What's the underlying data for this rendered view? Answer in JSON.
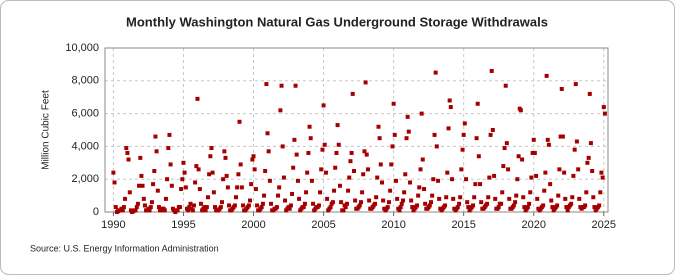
{
  "chart_data": {
    "type": "scatter",
    "title": "Monthly Washington Natural  Gas Underground Storage Withdrawals",
    "y_label": "Million Cubic Feet",
    "source": "Source: U.S. Energy Information Administration",
    "color": "#a50000",
    "grid": true,
    "xlim": [
      1989.4,
      2025.3
    ],
    "ylim": [
      0,
      10000
    ],
    "xticks": [
      1990,
      1995,
      2000,
      2005,
      2010,
      2015,
      2020,
      2025
    ],
    "yticks": [
      0,
      {
        "value": 2000,
        "label": "2,000"
      },
      {
        "value": 4000,
        "label": "4,000"
      },
      {
        "value": 6000,
        "label": "6,000"
      },
      {
        "value": 8000,
        "label": "8,000"
      },
      {
        "value": 10000,
        "label": "10,000"
      }
    ],
    "x": [
      1990.0,
      1990.08,
      1990.17,
      1990.25,
      1990.33,
      1990.42,
      1990.5,
      1990.58,
      1990.67,
      1990.75,
      1990.83,
      1990.92,
      1991.0,
      1991.08,
      1991.17,
      1991.25,
      1991.33,
      1991.42,
      1991.5,
      1991.58,
      1991.67,
      1991.75,
      1991.83,
      1991.92,
      1992.0,
      1992.08,
      1992.17,
      1992.25,
      1992.33,
      1992.42,
      1992.5,
      1992.58,
      1992.67,
      1992.75,
      1992.83,
      1992.92,
      1993.0,
      1993.08,
      1993.17,
      1993.25,
      1993.33,
      1993.42,
      1993.5,
      1993.58,
      1993.67,
      1993.75,
      1993.83,
      1993.92,
      1994.0,
      1994.08,
      1994.17,
      1994.25,
      1994.33,
      1994.42,
      1994.5,
      1994.58,
      1994.67,
      1994.75,
      1994.83,
      1994.92,
      1995.0,
      1995.08,
      1995.17,
      1995.25,
      1995.33,
      1995.42,
      1995.5,
      1995.58,
      1995.67,
      1995.75,
      1995.83,
      1995.92,
      1996.0,
      1996.08,
      1996.17,
      1996.25,
      1996.33,
      1996.42,
      1996.5,
      1996.58,
      1996.67,
      1996.75,
      1996.83,
      1996.92,
      1997.0,
      1997.08,
      1997.17,
      1997.25,
      1997.33,
      1997.42,
      1997.5,
      1997.58,
      1997.67,
      1997.75,
      1997.83,
      1997.92,
      1998.0,
      1998.08,
      1998.17,
      1998.25,
      1998.33,
      1998.42,
      1998.5,
      1998.58,
      1998.67,
      1998.75,
      1998.83,
      1998.92,
      1999.0,
      1999.08,
      1999.17,
      1999.25,
      1999.33,
      1999.42,
      1999.5,
      1999.58,
      1999.67,
      1999.75,
      1999.83,
      1999.92,
      2000.0,
      2000.08,
      2000.17,
      2000.25,
      2000.33,
      2000.42,
      2000.5,
      2000.58,
      2000.67,
      2000.75,
      2000.83,
      2000.92,
      2001.0,
      2001.08,
      2001.17,
      2001.25,
      2001.33,
      2001.42,
      2001.5,
      2001.58,
      2001.67,
      2001.75,
      2001.83,
      2001.92,
      2002.0,
      2002.08,
      2002.17,
      2002.25,
      2002.33,
      2002.42,
      2002.5,
      2002.58,
      2002.67,
      2002.75,
      2002.83,
      2002.92,
      2003.0,
      2003.08,
      2003.17,
      2003.25,
      2003.33,
      2003.42,
      2003.5,
      2003.58,
      2003.67,
      2003.75,
      2003.83,
      2003.92,
      2004.0,
      2004.08,
      2004.17,
      2004.25,
      2004.33,
      2004.42,
      2004.5,
      2004.58,
      2004.67,
      2004.75,
      2004.83,
      2004.92,
      2005.0,
      2005.08,
      2005.17,
      2005.25,
      2005.33,
      2005.42,
      2005.5,
      2005.58,
      2005.67,
      2005.75,
      2005.83,
      2005.92,
      2006.0,
      2006.08,
      2006.17,
      2006.25,
      2006.33,
      2006.42,
      2006.5,
      2006.58,
      2006.67,
      2006.75,
      2006.83,
      2006.92,
      2007.0,
      2007.08,
      2007.17,
      2007.25,
      2007.33,
      2007.42,
      2007.5,
      2007.58,
      2007.67,
      2007.75,
      2007.83,
      2007.92,
      2008.0,
      2008.08,
      2008.17,
      2008.25,
      2008.33,
      2008.42,
      2008.5,
      2008.58,
      2008.67,
      2008.75,
      2008.83,
      2008.92,
      2009.0,
      2009.08,
      2009.17,
      2009.25,
      2009.33,
      2009.42,
      2009.5,
      2009.58,
      2009.67,
      2009.75,
      2009.83,
      2009.92,
      2010.0,
      2010.08,
      2010.17,
      2010.25,
      2010.33,
      2010.42,
      2010.5,
      2010.58,
      2010.67,
      2010.75,
      2010.83,
      2010.92,
      2011.0,
      2011.08,
      2011.17,
      2011.25,
      2011.33,
      2011.42,
      2011.5,
      2011.58,
      2011.67,
      2011.75,
      2011.83,
      2011.92,
      2012.0,
      2012.08,
      2012.17,
      2012.25,
      2012.33,
      2012.42,
      2012.5,
      2012.58,
      2012.67,
      2012.75,
      2012.83,
      2012.92,
      2013.0,
      2013.08,
      2013.17,
      2013.25,
      2013.33,
      2013.42,
      2013.5,
      2013.58,
      2013.67,
      2013.75,
      2013.83,
      2013.92,
      2014.0,
      2014.08,
      2014.17,
      2014.25,
      2014.33,
      2014.42,
      2014.5,
      2014.58,
      2014.67,
      2014.75,
      2014.83,
      2014.92,
      2015.0,
      2015.08,
      2015.17,
      2015.25,
      2015.33,
      2015.42,
      2015.5,
      2015.58,
      2015.67,
      2015.75,
      2015.83,
      2015.92,
      2016.0,
      2016.08,
      2016.17,
      2016.25,
      2016.33,
      2016.42,
      2016.5,
      2016.58,
      2016.67,
      2016.75,
      2016.83,
      2016.92,
      2017.0,
      2017.08,
      2017.17,
      2017.25,
      2017.33,
      2017.42,
      2017.5,
      2017.58,
      2017.67,
      2017.75,
      2017.83,
      2017.92,
      2018.0,
      2018.08,
      2018.17,
      2018.25,
      2018.33,
      2018.42,
      2018.5,
      2018.58,
      2018.67,
      2018.75,
      2018.83,
      2018.92,
      2019.0,
      2019.08,
      2019.17,
      2019.25,
      2019.33,
      2019.42,
      2019.5,
      2019.58,
      2019.67,
      2019.75,
      2019.83,
      2019.92,
      2020.0,
      2020.08,
      2020.17,
      2020.25,
      2020.33,
      2020.42,
      2020.5,
      2020.58,
      2020.67,
      2020.75,
      2020.83,
      2020.92,
      2021.0,
      2021.08,
      2021.17,
      2021.25,
      2021.33,
      2021.42,
      2021.5,
      2021.58,
      2021.67,
      2021.75,
      2021.83,
      2021.92,
      2022.0,
      2022.08,
      2022.17,
      2022.25,
      2022.33,
      2022.42,
      2022.5,
      2022.58,
      2022.67,
      2022.75,
      2022.83,
      2022.92,
      2023.0,
      2023.08,
      2023.17,
      2023.25,
      2023.33,
      2023.42,
      2023.5,
      2023.58,
      2023.67,
      2023.75,
      2023.83,
      2023.92,
      2024.0,
      2024.08,
      2024.17,
      2024.25,
      2024.33,
      2024.42,
      2024.5,
      2024.58,
      2024.67,
      2024.75,
      2024.83,
      2024.92,
      2025.0,
      2025.08
    ],
    "values": [
      2400,
      1800,
      300,
      0,
      50,
      100,
      100,
      200,
      100,
      300,
      800,
      3900,
      3600,
      3200,
      1200,
      100,
      0,
      50,
      100,
      100,
      300,
      500,
      1600,
      3300,
      2200,
      1600,
      800,
      400,
      100,
      100,
      200,
      100,
      300,
      600,
      1700,
      2500,
      4600,
      3700,
      1300,
      300,
      100,
      100,
      200,
      200,
      100,
      800,
      2000,
      3900,
      4700,
      2900,
      1600,
      200,
      100,
      0,
      100,
      100,
      300,
      300,
      1400,
      2000,
      3000,
      2400,
      1500,
      200,
      100,
      300,
      500,
      200,
      100,
      400,
      1800,
      2800,
      6900,
      2600,
      1400,
      500,
      100,
      200,
      300,
      100,
      300,
      900,
      2300,
      3400,
      3900,
      2400,
      1200,
      300,
      100,
      100,
      100,
      200,
      300,
      600,
      2000,
      3700,
      3300,
      2200,
      1500,
      400,
      100,
      100,
      200,
      300,
      400,
      900,
      1500,
      2300,
      5500,
      2900,
      1500,
      400,
      100,
      100,
      200,
      300,
      400,
      700,
      1700,
      3200,
      3400,
      2600,
      1400,
      400,
      100,
      100,
      200,
      300,
      500,
      1000,
      2500,
      7800,
      4800,
      3700,
      1900,
      500,
      100,
      100,
      200,
      200,
      300,
      1000,
      1500,
      6200,
      7700,
      4000,
      2100,
      700,
      100,
      200,
      300,
      200,
      400,
      1100,
      2700,
      4400,
      7700,
      3500,
      1900,
      800,
      100,
      200,
      300,
      300,
      500,
      1200,
      2400,
      3600,
      5200,
      4500,
      1900,
      500,
      100,
      200,
      300,
      300,
      400,
      1200,
      2600,
      3800,
      6500,
      4100,
      2400,
      800,
      100,
      200,
      300,
      500,
      600,
      1300,
      2700,
      3600,
      5300,
      4100,
      1600,
      600,
      100,
      100,
      400,
      300,
      500,
      1300,
      2100,
      3100,
      3600,
      7200,
      2500,
      700,
      200,
      200,
      300,
      400,
      600,
      1200,
      2300,
      3700,
      7900,
      3500,
      2600,
      700,
      200,
      200,
      300,
      400,
      500,
      900,
      2100,
      5200,
      4500,
      2900,
      1800,
      700,
      200,
      100,
      200,
      300,
      600,
      1300,
      2900,
      4000,
      6600,
      4700,
      1900,
      800,
      200,
      100,
      300,
      500,
      700,
      1200,
      2300,
      4500,
      5800,
      4900,
      1800,
      700,
      300,
      100,
      200,
      300,
      400,
      1000,
      1500,
      2600,
      6000,
      3200,
      1400,
      500,
      200,
      200,
      300,
      400,
      600,
      1000,
      2000,
      4700,
      8500,
      4000,
      1900,
      800,
      200,
      100,
      200,
      300,
      400,
      900,
      2400,
      5100,
      6800,
      6400,
      2000,
      800,
      200,
      100,
      200,
      300,
      500,
      900,
      2600,
      3800,
      4700,
      5400,
      2000,
      600,
      300,
      100,
      200,
      300,
      400,
      900,
      1700,
      4500,
      6600,
      3400,
      1700,
      600,
      200,
      200,
      300,
      400,
      500,
      900,
      2100,
      4700,
      8600,
      5000,
      2200,
      800,
      200,
      200,
      300,
      500,
      500,
      1200,
      2800,
      3900,
      7700,
      4200,
      2600,
      800,
      200,
      200,
      300,
      400,
      600,
      1000,
      2000,
      3400,
      6300,
      6200,
      3200,
      900,
      300,
      100,
      200,
      300,
      500,
      1200,
      2100,
      3600,
      4400,
      3600,
      2200,
      800,
      200,
      100,
      200,
      300,
      400,
      1300,
      2400,
      8300,
      4400,
      4100,
      1700,
      700,
      300,
      100,
      200,
      300,
      400,
      1000,
      2600,
      4600,
      7500,
      4600,
      2400,
      800,
      300,
      100,
      300,
      400,
      500,
      900,
      2200,
      3800,
      7800,
      4300,
      2600,
      800,
      300,
      200,
      300,
      300,
      400,
      1200,
      3000,
      3300,
      7200,
      4200,
      2500,
      900,
      300,
      100,
      200,
      300,
      400,
      1200,
      2400,
      2100,
      6400,
      6000
    ]
  }
}
